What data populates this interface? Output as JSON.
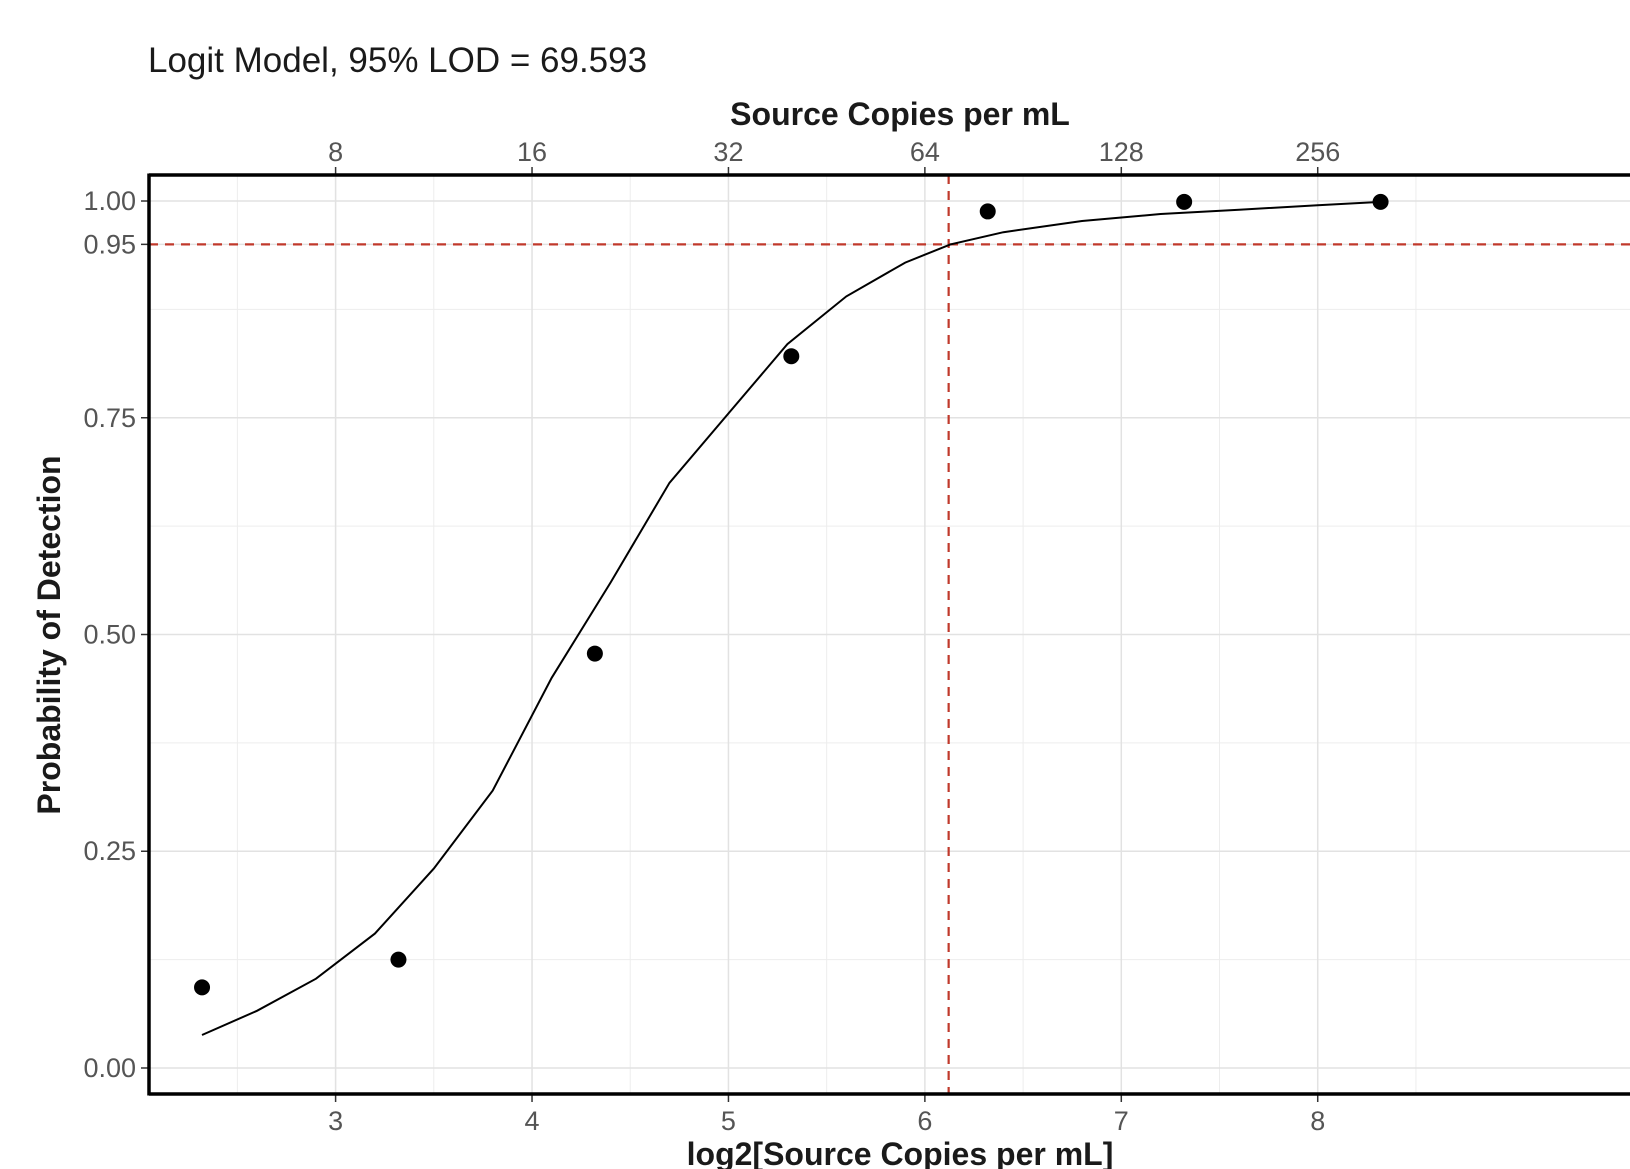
{
  "chart_data": {
    "type": "scatter",
    "title": "Logit Model, 95% LOD = 69.593",
    "xlabel": "log2[Source Copies per mL]",
    "ylabel": "Probability of Detection",
    "x2label": "Source Copies per mL",
    "xlim": [
      2.05,
      9.6
    ],
    "ylim": [
      -0.03,
      1.03
    ],
    "x_ticks": [
      3,
      4,
      5,
      6,
      7,
      8
    ],
    "x_tick_labels": [
      "3",
      "4",
      "5",
      "6",
      "7",
      "8"
    ],
    "x2_ticks": [
      3,
      4,
      5,
      6,
      7,
      8
    ],
    "x2_tick_labels": [
      "8",
      "16",
      "32",
      "64",
      "128",
      "256"
    ],
    "y_ticks": [
      0,
      0.25,
      0.5,
      0.75,
      0.95,
      1.0
    ],
    "y_tick_labels": [
      "0.00",
      "0.25",
      "0.50",
      "0.75",
      "0.95",
      "1.00"
    ],
    "grid": true,
    "series": [
      {
        "type": "scatter",
        "x": [
          2.32,
          3.32,
          4.32,
          5.32,
          6.32,
          7.32,
          8.32
        ],
        "y": [
          0.093,
          0.125,
          0.478,
          0.821,
          0.988,
          0.999,
          0.999
        ],
        "color": "#000000"
      },
      {
        "type": "line",
        "x": [
          2.32,
          2.6,
          2.9,
          3.2,
          3.5,
          3.8,
          4.1,
          4.4,
          4.7,
          5.0,
          5.3,
          5.6,
          5.9,
          6.13,
          6.4,
          6.8,
          7.2,
          7.6,
          8.0,
          8.32
        ],
        "y": [
          0.038,
          0.066,
          0.103,
          0.155,
          0.23,
          0.32,
          0.45,
          0.56,
          0.675,
          0.755,
          0.835,
          0.89,
          0.929,
          0.95,
          0.964,
          0.977,
          0.985,
          0.99,
          0.995,
          0.999
        ],
        "color": "#000000"
      }
    ],
    "reference_lines": [
      {
        "orientation": "horizontal",
        "value": 0.95,
        "color": "#c0392b",
        "style": "dashed"
      },
      {
        "orientation": "vertical",
        "value": 6.121,
        "color": "#c0392b",
        "style": "dashed"
      }
    ]
  }
}
